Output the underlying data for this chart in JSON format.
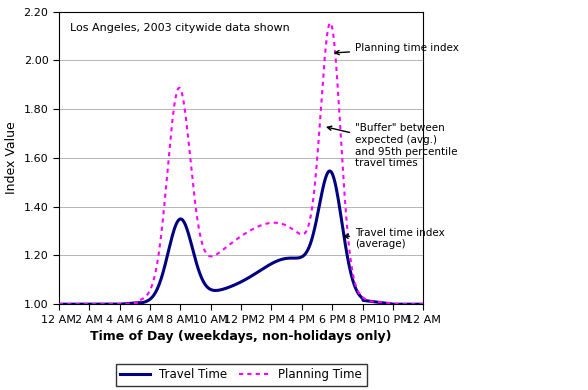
{
  "title": "Los Angeles, 2003 citywide data shown",
  "xlabel": "Time of Day (weekdays, non-holidays only)",
  "ylabel": "Index Value",
  "ylim": [
    1.0,
    2.2
  ],
  "yticks": [
    1.0,
    1.2,
    1.4,
    1.6,
    1.8,
    2.0,
    2.2
  ],
  "ytick_labels": [
    "1.00",
    "1.20",
    "1.40",
    "1.60",
    "1.80",
    "2.00",
    "2.20"
  ],
  "xtick_labels": [
    "12 AM",
    "2 AM",
    "4 AM",
    "6 AM",
    "8 AM",
    "10 AM",
    "12 PM",
    "2 PM",
    "4 PM",
    "6 PM",
    "8 PM",
    "10 PM",
    "12 AM"
  ],
  "travel_time_color": "#000080",
  "planning_time_color": "#FF00FF",
  "background_color": "#FFFFFF",
  "annotation1": "Planning time index",
  "annotation2": "\"Buffer\" between\nexpected (avg.)\nand 95th percentile\ntravel times",
  "annotation3": "Travel time index\n(average)",
  "legend_travel": "Travel Time",
  "legend_planning": "Planning Time"
}
